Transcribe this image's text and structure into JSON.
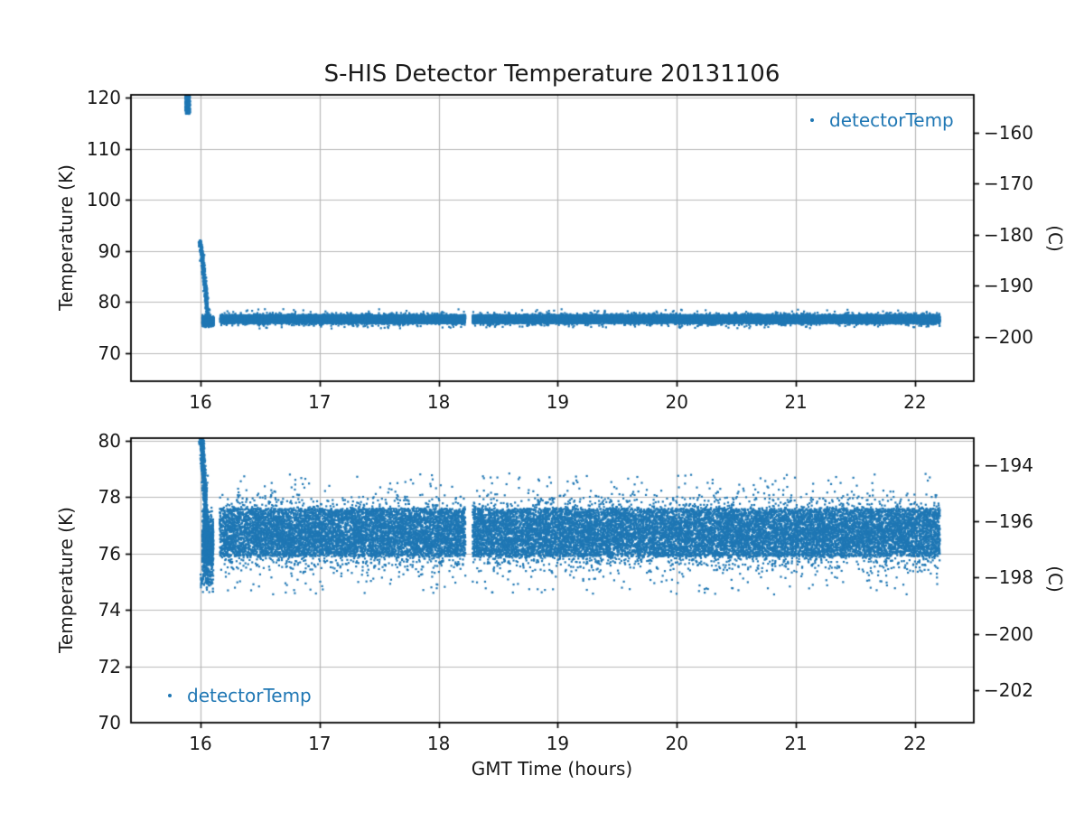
{
  "figure": {
    "title": "S-HIS Detector Temperature 20131106",
    "xlabel": "GMT Time (hours)",
    "colors": {
      "accent": "#1f77b4",
      "grid": "#b8b8b8",
      "spine": "#000000",
      "text": "#1a1a1a"
    }
  },
  "chart_data": [
    {
      "type": "scatter",
      "title": "S-HIS Detector Temperature 20131106",
      "ylabel": "Temperature (K)",
      "ylabel_right": "(C)",
      "xlim": [
        15.416,
        22.494
      ],
      "ylim": [
        64.5,
        120.53
      ],
      "right_axis_offset": 273.15,
      "grid": true,
      "xticks": [
        {
          "v": 16,
          "label": "16"
        },
        {
          "v": 17,
          "label": "17"
        },
        {
          "v": 18,
          "label": "18"
        },
        {
          "v": 19,
          "label": "19"
        },
        {
          "v": 20,
          "label": "20"
        },
        {
          "v": 21,
          "label": "21"
        },
        {
          "v": 22,
          "label": "22"
        }
      ],
      "yticks": [
        {
          "v": 70,
          "label": "70"
        },
        {
          "v": 80,
          "label": "80"
        },
        {
          "v": 90,
          "label": "90"
        },
        {
          "v": 100,
          "label": "100"
        },
        {
          "v": 110,
          "label": "110"
        },
        {
          "v": 120,
          "label": "120"
        }
      ],
      "yticks_right": [
        {
          "v": -160,
          "label": "−160"
        },
        {
          "v": -170,
          "label": "−170"
        },
        {
          "v": -180,
          "label": "−180"
        },
        {
          "v": -190,
          "label": "−190"
        },
        {
          "v": -200,
          "label": "−200"
        }
      ],
      "legend": {
        "label": "detectorTemp",
        "loc": "upper right",
        "marker": "dot"
      },
      "series": [
        {
          "name": "detectorTemp",
          "color": "#1f77b4",
          "segments": [
            {
              "kind": "uniform",
              "n": 260,
              "x": [
                15.872,
                15.912
              ],
              "y": [
                116.8,
                121.3
              ]
            },
            {
              "kind": "decay",
              "n": 480,
              "x": [
                15.995,
                16.065
              ],
              "y": [
                91.7,
                76.4
              ],
              "pow": 1.25,
              "jx": 0.007,
              "jy": 0.28
            },
            {
              "kind": "gauss-band",
              "n": 750,
              "x": [
                16.015,
                16.112
              ],
              "mean": 76.25,
              "sd": 0.5,
              "clip": [
                75.05,
                77.6
              ]
            },
            {
              "kind": "mix-band",
              "n": 6800,
              "x": [
                16.165,
                18.225
              ],
              "mix": [
                {
                  "w": 0.7,
                  "u": [
                    75.85,
                    77.45
                  ]
                },
                {
                  "w": 0.26,
                  "g": [
                    76.6,
                    0.5
                  ],
                  "clip": [
                    75.3,
                    77.95
                  ]
                },
                {
                  "w": 0.04,
                  "g": [
                    76.6,
                    1.0
                  ],
                  "clip": [
                    74.8,
                    78.6
                  ]
                }
              ]
            },
            {
              "kind": "mix-band",
              "n": 13000,
              "x": [
                18.285,
                22.21
              ],
              "mix": [
                {
                  "w": 0.7,
                  "u": [
                    75.85,
                    77.45
                  ]
                },
                {
                  "w": 0.26,
                  "g": [
                    76.6,
                    0.5
                  ],
                  "clip": [
                    75.3,
                    77.95
                  ]
                },
                {
                  "w": 0.04,
                  "g": [
                    76.6,
                    1.0
                  ],
                  "clip": [
                    74.8,
                    78.6
                  ]
                }
              ]
            }
          ]
        }
      ]
    },
    {
      "type": "scatter",
      "ylabel": "Temperature (K)",
      "ylabel_right": "(C)",
      "xlabel": "GMT Time (hours)",
      "xlim": [
        15.416,
        22.494
      ],
      "ylim": [
        70,
        80.1
      ],
      "right_axis_offset": 273.15,
      "grid": true,
      "xticks": [
        {
          "v": 16,
          "label": "16"
        },
        {
          "v": 17,
          "label": "17"
        },
        {
          "v": 18,
          "label": "18"
        },
        {
          "v": 19,
          "label": "19"
        },
        {
          "v": 20,
          "label": "20"
        },
        {
          "v": 21,
          "label": "21"
        },
        {
          "v": 22,
          "label": "22"
        }
      ],
      "yticks": [
        {
          "v": 70,
          "label": "70"
        },
        {
          "v": 72,
          "label": "72"
        },
        {
          "v": 74,
          "label": "74"
        },
        {
          "v": 76,
          "label": "76"
        },
        {
          "v": 78,
          "label": "78"
        },
        {
          "v": 80,
          "label": "80"
        }
      ],
      "yticks_right": [
        {
          "v": -194,
          "label": "−194"
        },
        {
          "v": -196,
          "label": "−196"
        },
        {
          "v": -198,
          "label": "−198"
        },
        {
          "v": -200,
          "label": "−200"
        },
        {
          "v": -202,
          "label": "−202"
        }
      ],
      "legend": {
        "label": "detectorTemp",
        "loc": "lower left",
        "marker": "dot"
      },
      "series": [
        {
          "name": "detectorTemp",
          "color": "#1f77b4",
          "segments": [
            {
              "kind": "decay",
              "n": 950,
              "x": [
                15.997,
                16.06
              ],
              "y": [
                80.5,
                76.2
              ],
              "pow": 1.35,
              "jx": 0.008,
              "jy": 0.32
            },
            {
              "kind": "uniform",
              "n": 55,
              "x": [
                16.0,
                16.105
              ],
              "y": [
                74.62,
                75.35
              ]
            },
            {
              "kind": "gauss-band",
              "n": 900,
              "x": [
                16.015,
                16.108
              ],
              "mean": 76.3,
              "sd": 0.55,
              "clip": [
                74.9,
                77.8
              ]
            },
            {
              "kind": "mix-band",
              "n": 8200,
              "x": [
                16.16,
                18.225
              ],
              "mix": [
                {
                  "w": 0.64,
                  "u": [
                    75.9,
                    77.6
                  ]
                },
                {
                  "w": 0.28,
                  "g": [
                    76.7,
                    0.6
                  ],
                  "clip": [
                    75.35,
                    78.1
                  ]
                },
                {
                  "w": 0.08,
                  "g": [
                    76.7,
                    1.05
                  ],
                  "clip": [
                    74.55,
                    78.85
                  ]
                }
              ]
            },
            {
              "kind": "mix-band",
              "n": 15500,
              "x": [
                18.285,
                22.21
              ],
              "mix": [
                {
                  "w": 0.64,
                  "u": [
                    75.9,
                    77.6
                  ]
                },
                {
                  "w": 0.28,
                  "g": [
                    76.7,
                    0.6
                  ],
                  "clip": [
                    75.35,
                    78.1
                  ]
                },
                {
                  "w": 0.08,
                  "g": [
                    76.7,
                    1.05
                  ],
                  "clip": [
                    74.55,
                    78.85
                  ]
                }
              ]
            }
          ]
        }
      ]
    }
  ]
}
